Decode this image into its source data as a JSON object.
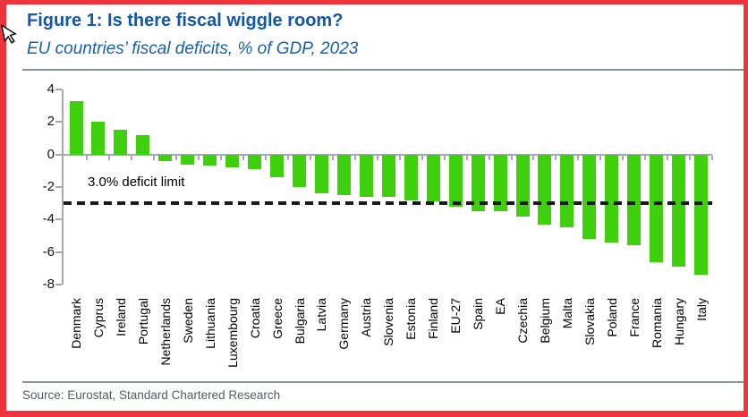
{
  "figure": {
    "title": "Figure 1: Is there fiscal wiggle room?",
    "subtitle": "EU countries’ fiscal deficits, % of GDP, 2023",
    "source": "Source: Eurostat, Standard Chartered Research"
  },
  "colors": {
    "title_blue": "#1358A8",
    "bar_green": "#3ED00C",
    "frame_red": "#EF333C",
    "axis_gray": "#A3A9B0",
    "rule_gray": "#8A9299",
    "dash_black": "#1A1A1A",
    "source_gray": "#555B60"
  },
  "chart_data": {
    "type": "bar",
    "title": "Figure 1: Is there fiscal wiggle room?",
    "subtitle": "EU countries’ fiscal deficits, % of GDP, 2023",
    "xlabel": "",
    "ylabel": "% of GDP",
    "ylim": [
      -8,
      4
    ],
    "yticks": [
      4,
      2,
      0,
      -2,
      -4,
      -6,
      -8
    ],
    "grid": false,
    "legend": false,
    "bar_color": "#3ED00C",
    "categories": [
      "Denmark",
      "Cyprus",
      "Ireland",
      "Portugal",
      "Netherlands",
      "Sweden",
      "Lithuania",
      "Luxembourg",
      "Croatia",
      "Greece",
      "Bulgaria",
      "Latvia",
      "Germany",
      "Austria",
      "Slovenia",
      "Estonia",
      "Finland",
      "EU-27",
      "Spain",
      "EA",
      "Czechia",
      "Belgium",
      "Malta",
      "Slovakia",
      "Poland",
      "France",
      "Romania",
      "Hungary",
      "Italy"
    ],
    "values": [
      3.3,
      2.0,
      1.5,
      1.2,
      -0.4,
      -0.6,
      -0.7,
      -0.8,
      -0.9,
      -1.4,
      -2.0,
      -2.4,
      -2.5,
      -2.6,
      -2.6,
      -2.8,
      -2.9,
      -3.2,
      -3.5,
      -3.5,
      -3.8,
      -4.3,
      -4.5,
      -5.2,
      -5.4,
      -5.6,
      -6.6,
      -6.9,
      -7.4
    ],
    "reference_line": {
      "value": -3.0,
      "label": "3.0% deficit limit",
      "style": "dashed",
      "color": "#1A1A1A"
    }
  }
}
